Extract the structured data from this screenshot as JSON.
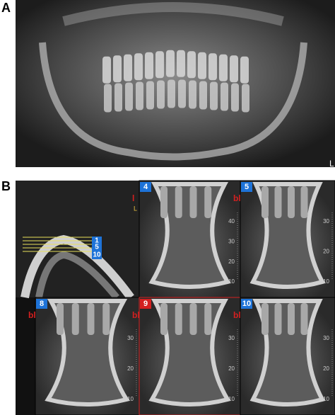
{
  "panel_a": {
    "label": "A",
    "corner_mark": "L"
  },
  "panel_b": {
    "label": "B",
    "axial": {
      "slice_labels": [
        "1",
        "5",
        "10"
      ]
    },
    "sections": [
      {
        "number": "4",
        "side": "l",
        "badge_color": "#1e73d8",
        "scale_unit": "L",
        "scale": [
          "40",
          "30",
          "20",
          "10"
        ]
      },
      {
        "number": "5",
        "side": "bl",
        "badge_color": "#1e73d8",
        "scale": [
          "30",
          "20",
          "10"
        ]
      },
      {
        "number": "8",
        "side": "bl",
        "badge_color": "#1e73d8",
        "scale": [
          "30",
          "20",
          "10"
        ]
      },
      {
        "number": "9",
        "side": "bl",
        "badge_color": "#d42020",
        "scale": [
          "30",
          "20",
          "10"
        ]
      },
      {
        "number": "10",
        "side": "bl",
        "badge_color": "#1e73d8",
        "scale": [
          "30",
          "20",
          "10"
        ]
      }
    ]
  }
}
